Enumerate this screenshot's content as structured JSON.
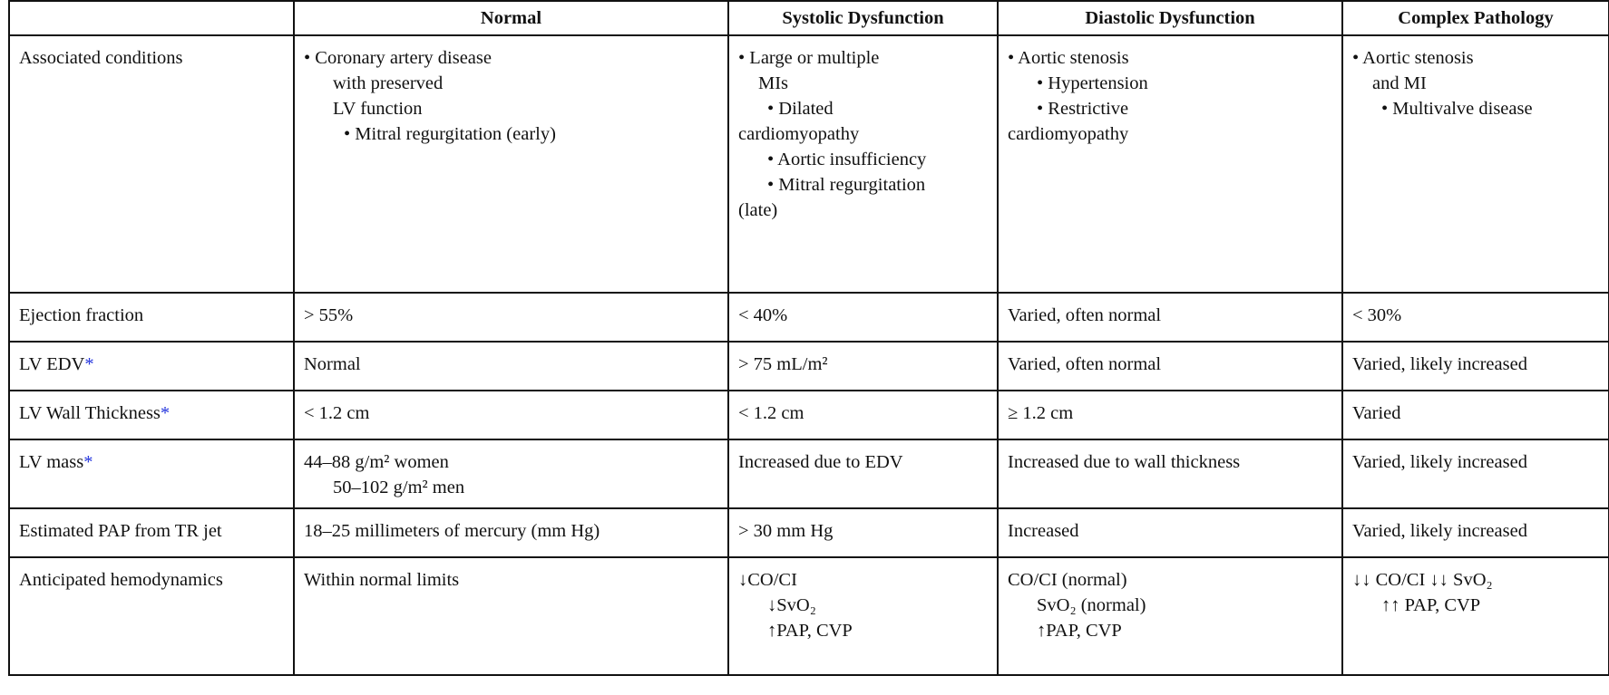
{
  "header": [
    "",
    "Normal",
    "Systolic Dysfunction",
    "Diastolic Dysfunction",
    "Complex Pathology"
  ],
  "rows": [
    {
      "label": "Associated conditions",
      "asterisk": "",
      "cells": [
        [
          "• Coronary artery disease",
          "with preserved",
          "LV function",
          "• Mitral regurgitation (early)"
        ],
        [
          "• Large or multiple",
          "MIs",
          "• Dilated",
          "cardiomyopathy",
          "• Aortic insufficiency",
          "• Mitral regurgitation",
          "(late)"
        ],
        [
          "• Aortic stenosis",
          "• Hypertension",
          "• Restrictive",
          "cardiomyopathy"
        ],
        [
          "• Aortic stenosis",
          "and MI",
          "• Multivalve disease"
        ]
      ]
    },
    {
      "label": "Ejection fraction",
      "asterisk": "",
      "cells": [
        [
          "> 55%"
        ],
        [
          "< 40%"
        ],
        [
          "Varied, often normal"
        ],
        [
          "< 30%"
        ]
      ]
    },
    {
      "label": "LV EDV",
      "asterisk": "*",
      "cells": [
        [
          "Normal"
        ],
        [
          "> 75 mL/m²"
        ],
        [
          "Varied, often normal"
        ],
        [
          "Varied, likely increased"
        ]
      ]
    },
    {
      "label": "LV Wall Thickness",
      "asterisk": "*",
      "cells": [
        [
          "< 1.2 cm"
        ],
        [
          "< 1.2 cm"
        ],
        [
          "≥ 1.2 cm"
        ],
        [
          "Varied"
        ]
      ]
    },
    {
      "label": "LV mass",
      "asterisk": "*",
      "cells": [
        [
          "44–88 g/m² women",
          "50–102 g/m² men"
        ],
        [
          "Increased due to EDV"
        ],
        [
          "Increased due to wall thickness"
        ],
        [
          "Varied, likely increased"
        ]
      ]
    },
    {
      "label": "Estimated PAP from TR jet",
      "asterisk": "",
      "cells": [
        [
          "18–25 millimeters of mercury (mm Hg)"
        ],
        [
          "> 30 mm Hg"
        ],
        [
          "Increased"
        ],
        [
          "Varied, likely increased"
        ]
      ]
    },
    {
      "label": "Anticipated hemodynamics",
      "asterisk": "",
      "cells": [
        [
          "Within normal limits"
        ],
        [
          "↓CO/CI",
          "↓SvO₂",
          "↑PAP, CVP"
        ],
        [
          "CO/CI (normal)",
          "SvO₂ (normal)",
          "↑PAP, CVP"
        ],
        [
          "↓↓ CO/CI ↓↓ SvO₂",
          "↑↑ PAP, CVP"
        ]
      ]
    }
  ],
  "colors": {
    "asterisk": "#2233dd",
    "border": "#111111"
  }
}
